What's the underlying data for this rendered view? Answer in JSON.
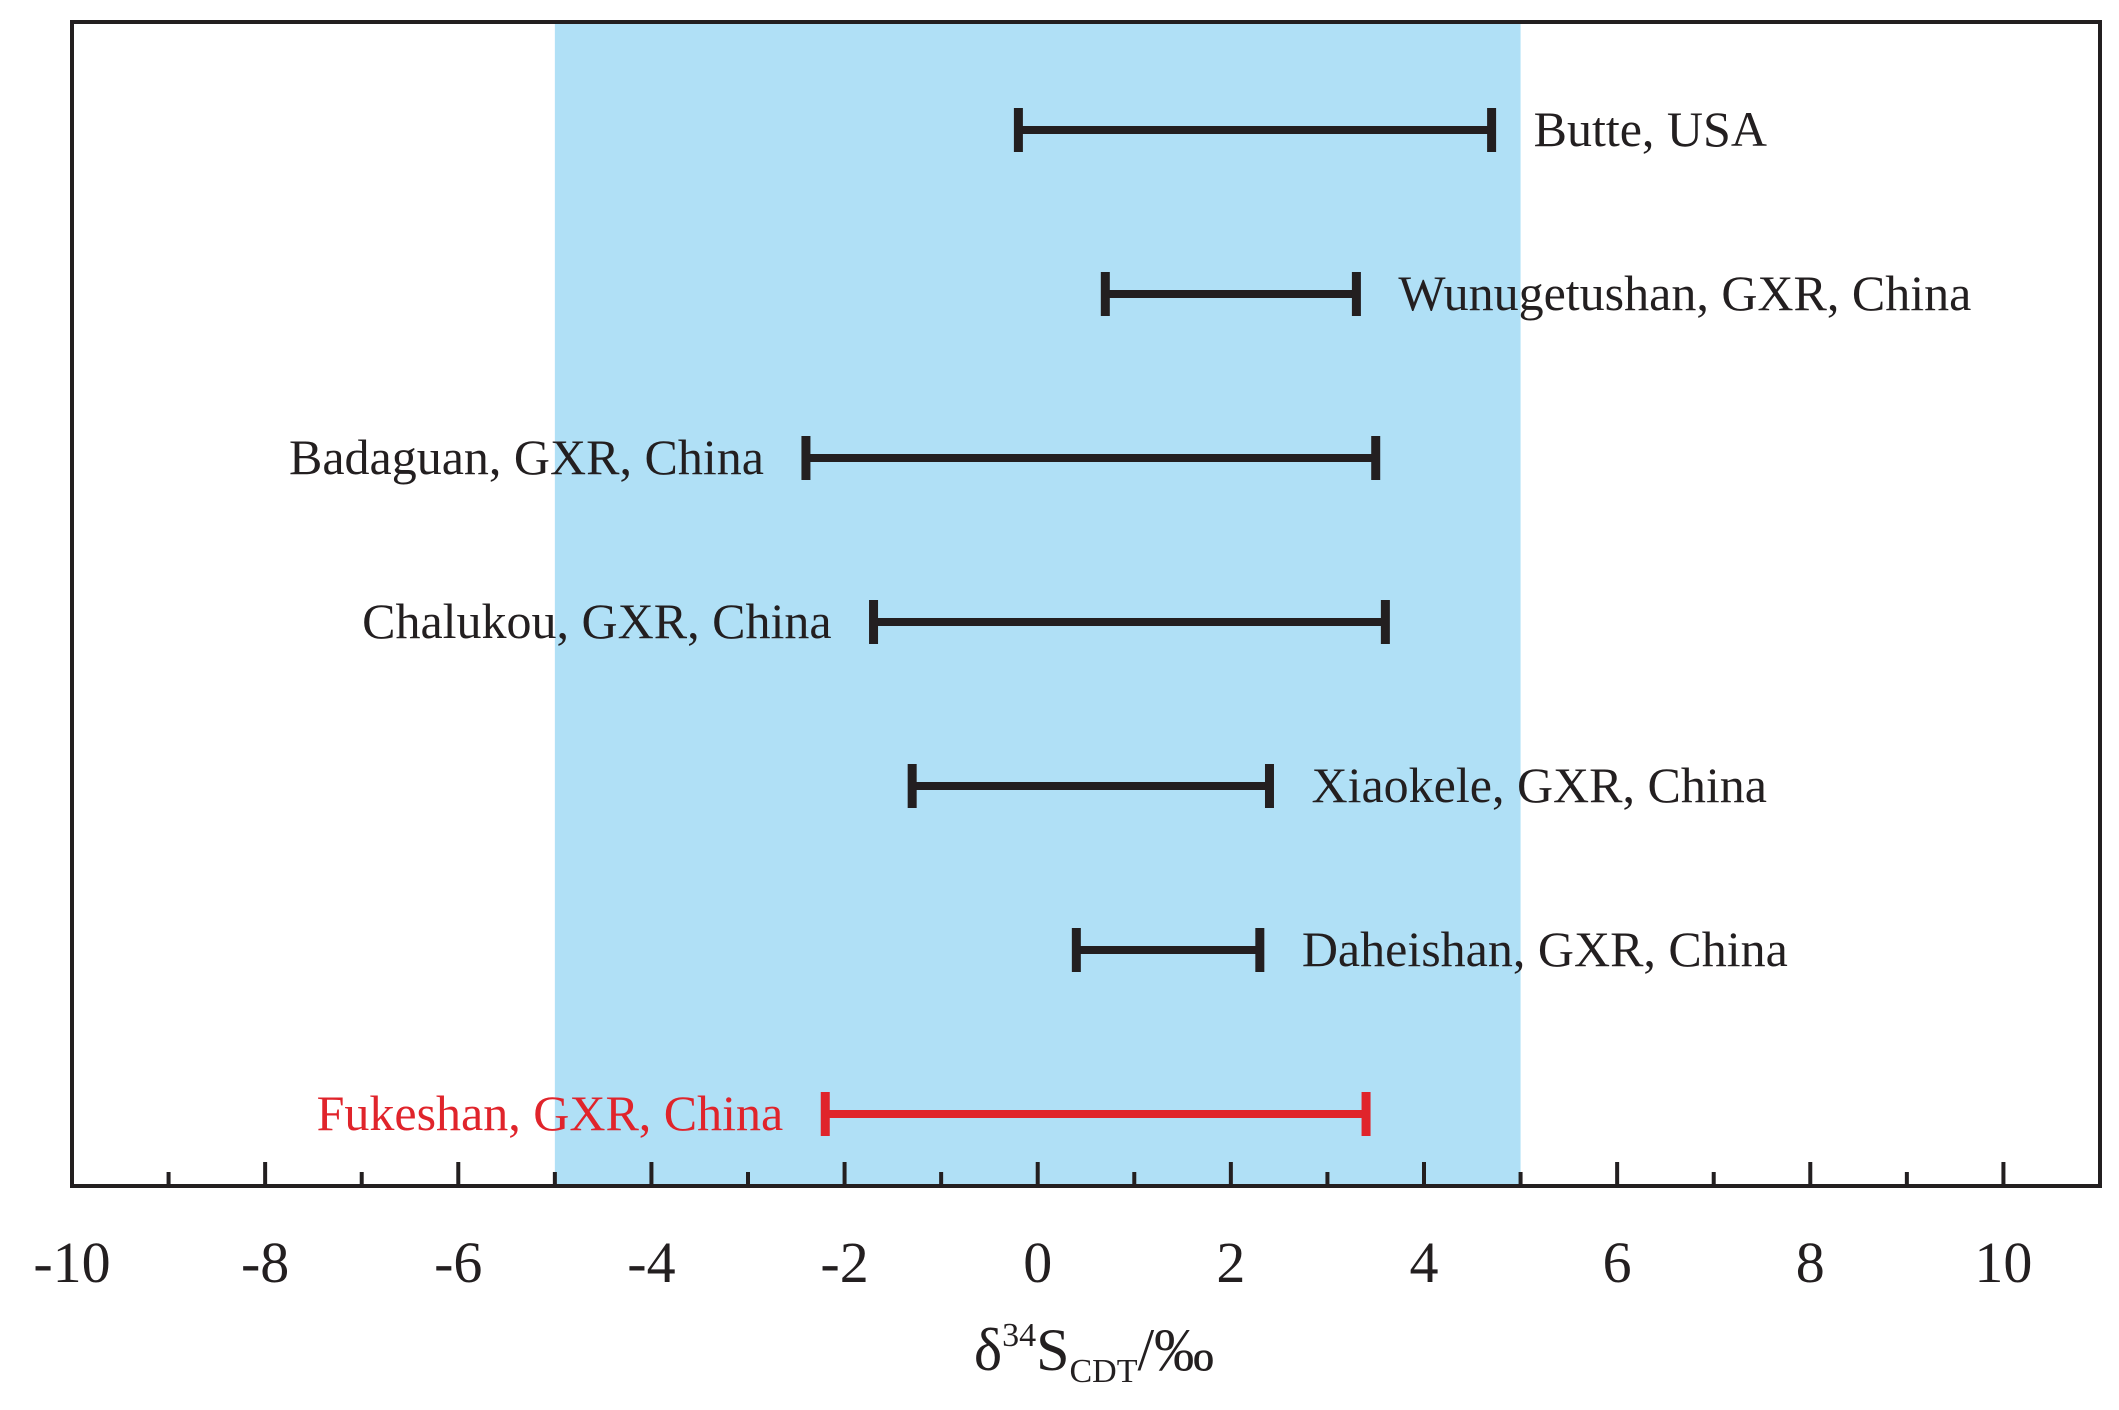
{
  "chart_data": {
    "type": "range",
    "xlabel": {
      "prefix": "δ",
      "superscript": "34",
      "base": "S",
      "subscript": "CDT",
      "suffix": "/‰"
    },
    "xlim": [
      -10,
      11
    ],
    "x_major_ticks": [
      -10,
      -8,
      -6,
      -4,
      -2,
      0,
      2,
      4,
      6,
      8,
      10
    ],
    "x_minor_step": 1,
    "highlight_band": {
      "from": -5,
      "to": 5,
      "color": "#b0e0f6"
    },
    "grid": false,
    "legend": "none",
    "colors": {
      "default": "#231f20",
      "highlight": "#e0242b"
    },
    "ranges": [
      {
        "label": "Butte, USA",
        "min": -0.2,
        "max": 4.7,
        "label_side": "right",
        "highlight": false
      },
      {
        "label": "Wunugetushan, GXR, China",
        "min": 0.7,
        "max": 3.3,
        "label_side": "right",
        "highlight": false
      },
      {
        "label": "Badaguan, GXR, China",
        "min": -2.4,
        "max": 3.5,
        "label_side": "left",
        "highlight": false
      },
      {
        "label": "Chalukou, GXR, China",
        "min": -1.7,
        "max": 3.6,
        "label_side": "left",
        "highlight": false
      },
      {
        "label": "Xiaokele, GXR, China",
        "min": -1.3,
        "max": 2.4,
        "label_side": "right",
        "highlight": false
      },
      {
        "label": "Daheishan, GXR, China",
        "min": 0.4,
        "max": 2.3,
        "label_side": "right",
        "highlight": false
      },
      {
        "label": "Fukeshan, GXR, China",
        "min": -2.2,
        "max": 3.4,
        "label_side": "left",
        "highlight": true
      }
    ]
  }
}
